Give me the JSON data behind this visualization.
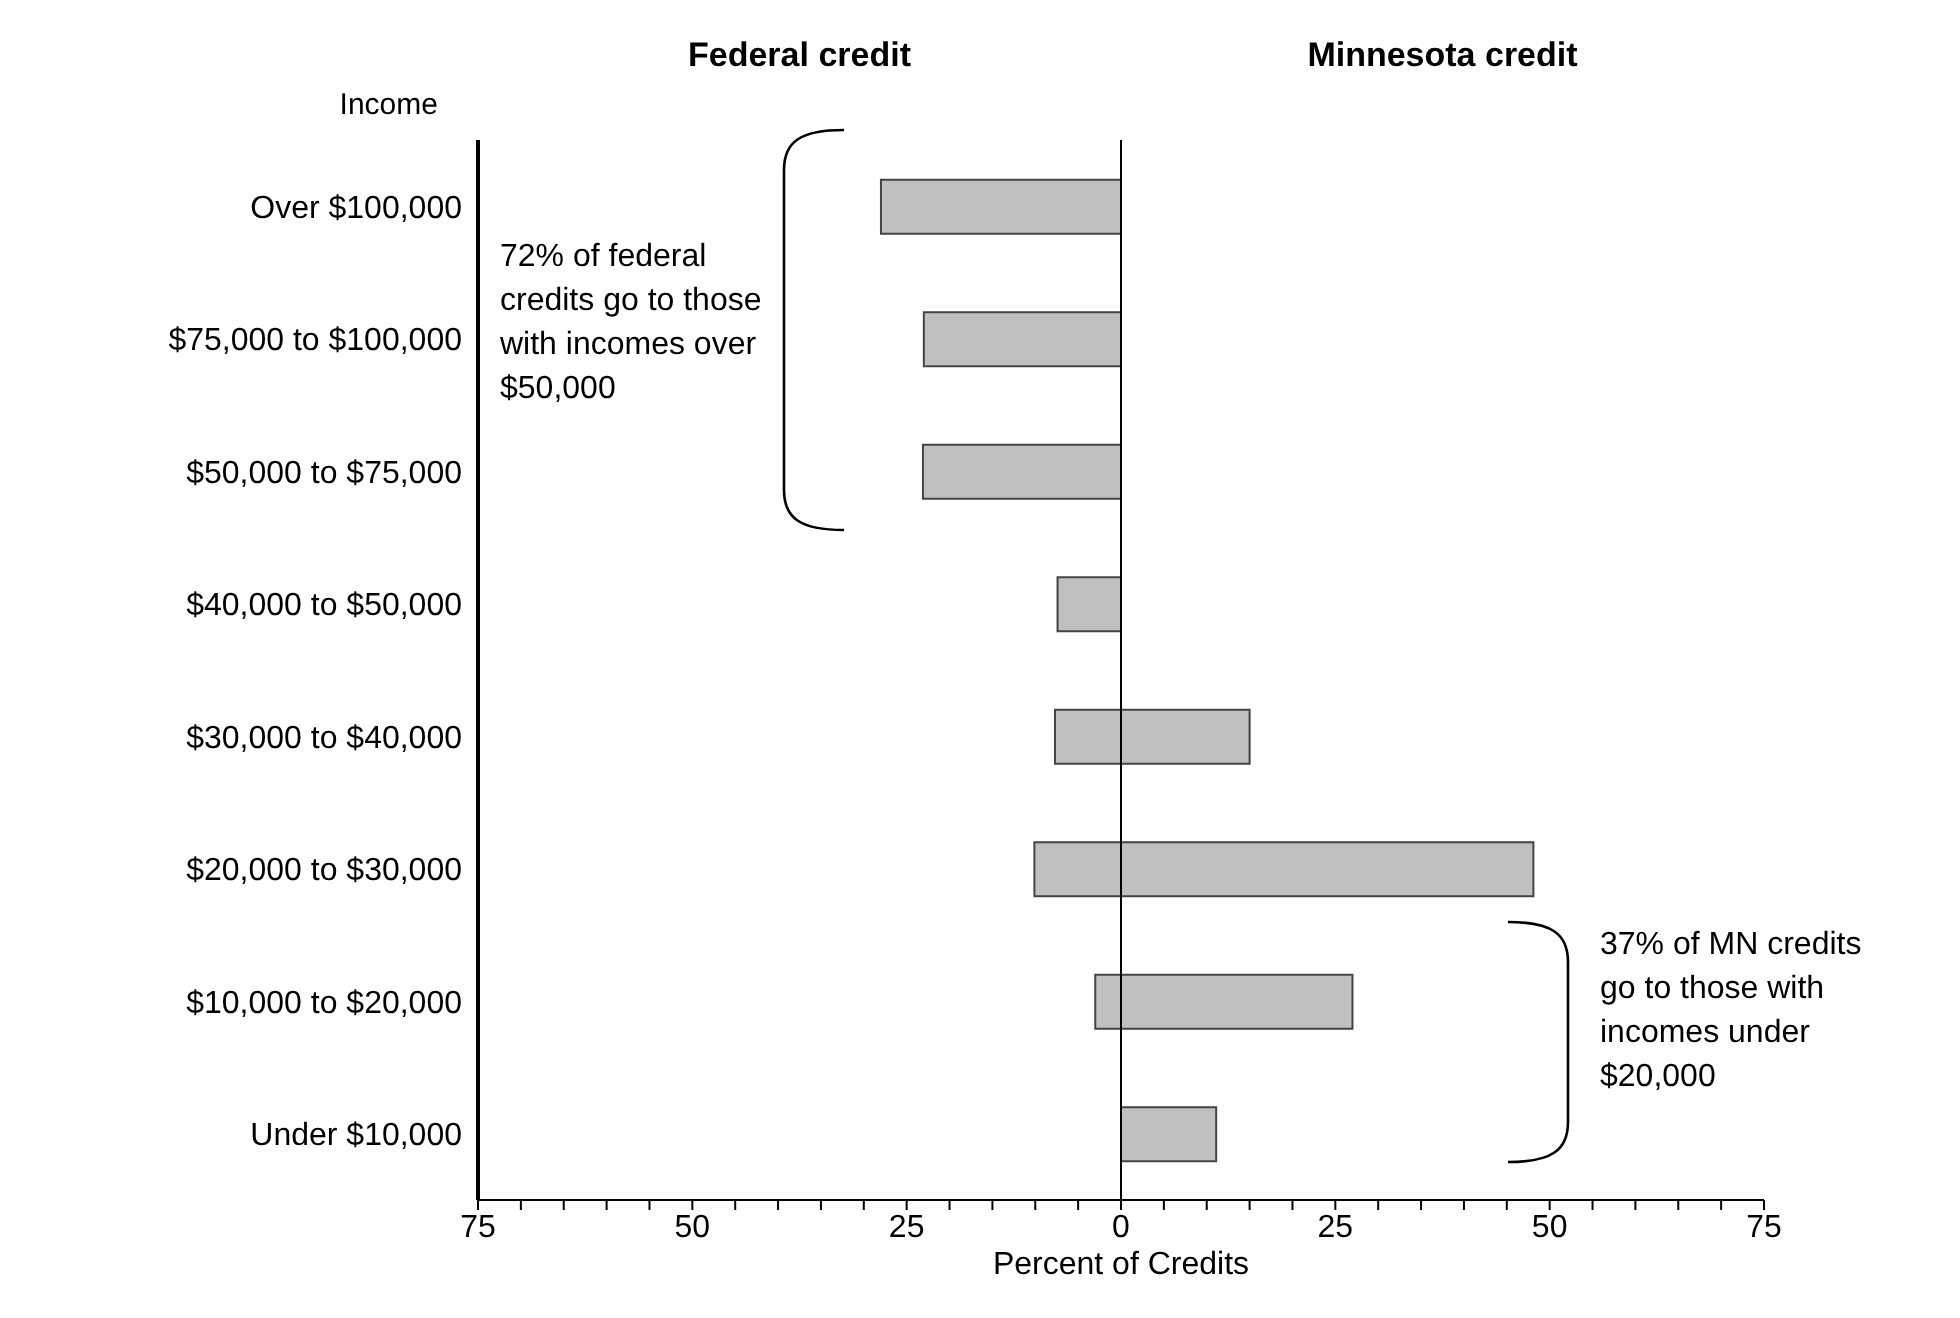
{
  "chart_data": {
    "type": "bar",
    "orientation": "horizontal",
    "stacked": true,
    "ylabel": "Income",
    "xlabel": "Percent of Credits",
    "categories": [
      "Over $100,000",
      "$75,000 to $100,000",
      "$50,000 to $75,000",
      "$40,000 to $50,000",
      "$30,000 to $40,000",
      "$20,000 to $30,000",
      "$10,000 to $20,000",
      "Under $10,000"
    ],
    "series": [
      {
        "color": "#c0c0c0",
        "values": [
          -28,
          -23,
          -23.1,
          -7.4,
          -7.7,
          -10.1,
          -3,
          0
        ]
      },
      {
        "color": "#c0c0c0",
        "values": [
          0,
          0,
          0,
          0,
          15,
          48.1,
          27,
          11.1
        ]
      }
    ],
    "xlim": [
      -75,
      75
    ],
    "xticks": [
      {
        "value": -75,
        "label": "75"
      },
      {
        "value": -70,
        "label": null
      },
      {
        "value": -65,
        "label": null
      },
      {
        "value": -60,
        "label": null
      },
      {
        "value": -55,
        "label": null
      },
      {
        "value": -50,
        "label": "50"
      },
      {
        "value": -45,
        "label": null
      },
      {
        "value": -40,
        "label": null
      },
      {
        "value": -35,
        "label": null
      },
      {
        "value": -30,
        "label": null
      },
      {
        "value": -25,
        "label": "25"
      },
      {
        "value": -20,
        "label": null
      },
      {
        "value": -15,
        "label": null
      },
      {
        "value": -10,
        "label": null
      },
      {
        "value": -5,
        "label": null
      },
      0,
      {
        "value": 5,
        "label": null
      },
      {
        "value": 10,
        "label": null
      },
      {
        "value": 15,
        "label": null
      },
      {
        "value": 20,
        "label": null
      },
      25,
      {
        "value": 30,
        "label": null
      },
      {
        "value": 35,
        "label": null
      },
      {
        "value": 40,
        "label": null
      },
      {
        "value": 45,
        "label": null
      },
      50,
      {
        "value": 55,
        "label": null
      },
      {
        "value": 60,
        "label": null
      },
      {
        "value": 65,
        "label": null
      },
      {
        "value": 70,
        "label": null
      },
      75
    ],
    "ref_lines": [
      {
        "axis": "x",
        "value": 0,
        "color": "#000000"
      }
    ],
    "annotations": [
      "72% of federal credits go to those with incomes over $50,000",
      "37% of MN credits go to those with incomes under $20,000",
      "Federal credit",
      "Minnesota credit"
    ],
    "grid": false,
    "legend": false
  }
}
